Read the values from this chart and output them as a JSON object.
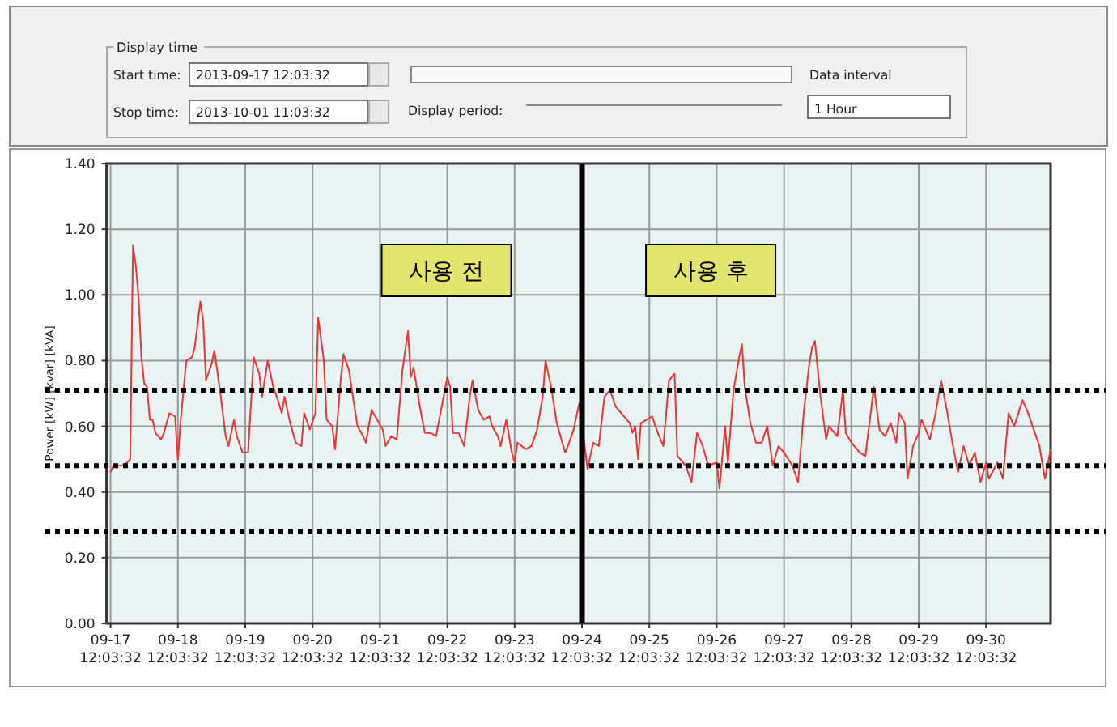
{
  "chart_data": {
    "type": "line",
    "ylabel": "Power [kW] [kvar] [kVA]",
    "xlim": [
      "2013-09-17T10:37",
      "2013-10-01T11:03"
    ],
    "ylim": [
      0,
      1.4
    ],
    "xticks": [
      {
        "value": "2013-09-17T12:03",
        "label": "09-17 12:03:32"
      },
      {
        "value": "2013-09-18T12:03",
        "label": "09-18 12:03:32"
      },
      {
        "value": "2013-09-19T12:03",
        "label": "09-19 12:03:32"
      },
      {
        "value": "2013-09-20T12:03",
        "label": "09-20 12:03:32"
      },
      {
        "value": "2013-09-21T12:03",
        "label": "09-21 12:03:32"
      },
      {
        "value": "2013-09-22T12:03",
        "label": "09-22 12:03:32"
      },
      {
        "value": "2013-09-23T12:03",
        "label": "09-23 12:03:32"
      },
      {
        "value": "2013-09-24T12:03",
        "label": "09-24 12:03:32"
      },
      {
        "value": "2013-09-25T12:03",
        "label": "09-25 12:03:32"
      },
      {
        "value": "2013-09-26T12:03",
        "label": "09-26 12:03:32"
      },
      {
        "value": "2013-09-27T12:03",
        "label": "09-27 12:03:32"
      },
      {
        "value": "2013-09-28T12:03",
        "label": "09-28 12:03:32"
      },
      {
        "value": "2013-09-29T12:03",
        "label": "09-29 12:03:32"
      },
      {
        "value": "2013-09-30T12:03",
        "label": "09-30 12:03:32"
      }
    ],
    "yticks": [
      {
        "value": 0,
        "label": "0.00"
      },
      {
        "value": 0.2,
        "label": "0.20"
      },
      {
        "value": 0.4,
        "label": "0.40"
      },
      {
        "value": 0.6,
        "label": "0.60"
      },
      {
        "value": 0.8,
        "label": "0.80"
      },
      {
        "value": 1.0,
        "label": "1.00"
      },
      {
        "value": 1.2,
        "label": "1.20"
      },
      {
        "value": 1.4,
        "label": "1.40"
      }
    ],
    "grid": true,
    "marker": "none",
    "line_style": "solid",
    "series": [
      {
        "color": "#ee3333",
        "x": [
          "2013-09-17T12:03",
          "2013-09-17T13:03",
          "2013-09-17T16:03",
          "2013-09-17T18:03",
          "2013-09-17T19:03",
          "2013-09-17T20:03",
          "2013-09-17T21:03",
          "2013-09-17T22:03",
          "2013-09-17T23:03",
          "2013-09-18T00:03",
          "2013-09-18T01:03",
          "2013-09-18T02:03",
          "2013-09-18T03:03",
          "2013-09-18T04:03",
          "2013-09-18T06:03",
          "2013-09-18T07:03",
          "2013-09-18T09:03",
          "2013-09-18T11:03",
          "2013-09-18T12:03",
          "2013-09-18T13:03",
          "2013-09-18T15:03",
          "2013-09-18T17:03",
          "2013-09-18T18:03",
          "2013-09-18T20:03",
          "2013-09-18T21:03",
          "2013-09-18T22:03",
          "2013-09-19T00:03",
          "2013-09-19T01:03",
          "2013-09-19T03:03",
          "2013-09-19T05:03",
          "2013-09-19T06:03",
          "2013-09-19T08:03",
          "2013-09-19T09:03",
          "2013-09-19T11:03",
          "2013-09-19T13:03",
          "2013-09-19T15:03",
          "2013-09-19T17:03",
          "2013-09-19T18:03",
          "2013-09-19T20:03",
          "2013-09-19T22:03",
          "2013-09-20T00:03",
          "2013-09-20T01:03",
          "2013-09-20T02:03",
          "2013-09-20T04:03",
          "2013-09-20T06:03",
          "2013-09-20T08:03",
          "2013-09-20T09:03",
          "2013-09-20T11:03",
          "2013-09-20T13:03",
          "2013-09-20T14:03",
          "2013-09-20T16:03",
          "2013-09-20T17:03",
          "2013-09-20T19:03",
          "2013-09-20T20:03",
          "2013-09-20T22:03",
          "2013-09-20T23:03",
          "2013-09-21T01:03",
          "2013-09-21T02:03",
          "2013-09-21T04:03",
          "2013-09-21T06:03",
          "2013-09-21T07:03",
          "2013-09-21T09:03",
          "2013-09-21T11:03",
          "2013-09-21T13:03",
          "2013-09-21T14:03",
          "2013-09-21T16:03",
          "2013-09-21T18:03",
          "2013-09-21T20:03",
          "2013-09-21T22:03",
          "2013-09-21T23:03",
          "2013-09-22T00:03",
          "2013-09-22T02:03",
          "2013-09-22T04:03",
          "2013-09-22T06:03",
          "2013-09-22T08:03",
          "2013-09-22T10:03",
          "2013-09-22T12:03",
          "2013-09-22T13:03",
          "2013-09-22T14:03",
          "2013-09-22T16:03",
          "2013-09-22T18:03",
          "2013-09-22T20:03",
          "2013-09-22T21:03",
          "2013-09-22T23:03",
          "2013-09-23T01:03",
          "2013-09-23T03:03",
          "2013-09-23T04:03",
          "2013-09-23T06:03",
          "2013-09-23T07:03",
          "2013-09-23T09:03",
          "2013-09-23T11:03",
          "2013-09-23T12:03",
          "2013-09-23T13:03",
          "2013-09-23T16:03",
          "2013-09-23T18:03",
          "2013-09-23T20:03",
          "2013-09-23T22:03",
          "2013-09-23T23:03",
          "2013-09-24T01:03",
          "2013-09-24T03:03",
          "2013-09-24T06:03",
          "2013-09-24T07:03",
          "2013-09-24T09:03",
          "2013-09-24T11:03",
          "2013-09-24T14:03",
          "2013-09-24T16:03",
          "2013-09-24T18:03",
          "2013-09-24T20:03",
          "2013-09-24T22:03",
          "2013-09-25T00:03",
          "2013-09-25T02:03",
          "2013-09-25T05:03",
          "2013-09-25T06:03",
          "2013-09-25T07:03",
          "2013-09-25T08:03",
          "2013-09-25T09:03",
          "2013-09-25T11:03",
          "2013-09-25T13:03",
          "2013-09-25T15:03",
          "2013-09-25T17:03",
          "2013-09-25T19:03",
          "2013-09-25T21:03",
          "2013-09-25T22:03",
          "2013-09-26T01:03",
          "2013-09-26T03:03",
          "2013-09-26T05:03",
          "2013-09-26T07:03",
          "2013-09-26T09:03",
          "2013-09-26T12:03",
          "2013-09-26T13:03",
          "2013-09-26T15:03",
          "2013-09-26T16:03",
          "2013-09-26T18:03",
          "2013-09-26T20:03",
          "2013-09-26T21:03",
          "2013-09-26T22:03",
          "2013-09-27T00:03",
          "2013-09-27T02:03",
          "2013-09-27T04:03",
          "2013-09-27T06:03",
          "2013-09-27T08:03",
          "2013-09-27T10:03",
          "2013-09-27T12:03",
          "2013-09-27T15:03",
          "2013-09-27T17:03",
          "2013-09-27T19:03",
          "2013-09-27T21:03",
          "2013-09-27T22:03",
          "2013-09-27T23:03",
          "2013-09-28T01:03",
          "2013-09-28T03:03",
          "2013-09-28T04:03",
          "2013-09-28T07:03",
          "2013-09-28T09:03",
          "2013-09-28T10:03",
          "2013-09-28T12:03",
          "2013-09-28T15:03",
          "2013-09-28T17:03",
          "2013-09-28T20:03",
          "2013-09-28T22:03",
          "2013-09-29T00:03",
          "2013-09-29T02:03",
          "2013-09-29T04:03",
          "2013-09-29T05:03",
          "2013-09-29T07:03",
          "2013-09-29T08:03",
          "2013-09-29T10:03",
          "2013-09-29T12:03",
          "2013-09-29T13:03",
          "2013-09-29T16:03",
          "2013-09-29T18:03",
          "2013-09-29T20:03",
          "2013-09-29T22:03",
          "2013-09-30T00:03",
          "2013-09-30T02:03",
          "2013-09-30T04:03",
          "2013-09-30T06:03",
          "2013-09-30T08:03",
          "2013-09-30T10:03",
          "2013-09-30T12:03",
          "2013-09-30T13:03",
          "2013-09-30T16:03",
          "2013-09-30T18:03",
          "2013-09-30T20:03",
          "2013-09-30T22:03",
          "2013-10-01T01:03",
          "2013-10-01T03:03",
          "2013-10-01T05:03",
          "2013-10-01T07:03",
          "2013-10-01T09:03",
          "2013-10-01T11:03"
        ],
        "values": [
          0.46,
          0.48,
          0.48,
          0.49,
          0.5,
          1.15,
          1.09,
          0.99,
          0.81,
          0.73,
          0.72,
          0.62,
          0.62,
          0.58,
          0.56,
          0.58,
          0.64,
          0.63,
          0.5,
          0.62,
          0.8,
          0.81,
          0.84,
          0.98,
          0.92,
          0.74,
          0.79,
          0.83,
          0.71,
          0.57,
          0.54,
          0.62,
          0.57,
          0.52,
          0.52,
          0.81,
          0.76,
          0.69,
          0.8,
          0.72,
          0.67,
          0.64,
          0.69,
          0.61,
          0.55,
          0.54,
          0.64,
          0.59,
          0.64,
          0.93,
          0.8,
          0.62,
          0.6,
          0.53,
          0.74,
          0.82,
          0.77,
          0.71,
          0.6,
          0.57,
          0.55,
          0.65,
          0.62,
          0.59,
          0.54,
          0.57,
          0.56,
          0.77,
          0.89,
          0.75,
          0.78,
          0.67,
          0.58,
          0.58,
          0.57,
          0.66,
          0.75,
          0.72,
          0.58,
          0.58,
          0.54,
          0.69,
          0.74,
          0.65,
          0.62,
          0.63,
          0.6,
          0.57,
          0.54,
          0.62,
          0.52,
          0.49,
          0.55,
          0.53,
          0.54,
          0.59,
          0.69,
          0.8,
          0.72,
          0.61,
          0.52,
          0.54,
          0.59,
          0.67,
          0.47,
          0.55,
          0.54,
          0.69,
          0.71,
          0.66,
          0.64,
          0.61,
          0.58,
          0.6,
          0.5,
          0.61,
          0.62,
          0.63,
          0.58,
          0.54,
          0.74,
          0.76,
          0.51,
          0.48,
          0.43,
          0.58,
          0.54,
          0.48,
          0.49,
          0.41,
          0.6,
          0.49,
          0.71,
          0.81,
          0.85,
          0.72,
          0.61,
          0.55,
          0.55,
          0.6,
          0.48,
          0.54,
          0.52,
          0.48,
          0.43,
          0.64,
          0.79,
          0.84,
          0.86,
          0.69,
          0.56,
          0.6,
          0.57,
          0.71,
          0.58,
          0.55,
          0.52,
          0.51,
          0.72,
          0.59,
          0.57,
          0.61,
          0.55,
          0.64,
          0.61,
          0.44,
          0.54,
          0.58,
          0.62,
          0.56,
          0.64,
          0.74,
          0.65,
          0.55,
          0.46,
          0.54,
          0.48,
          0.52,
          0.43,
          0.49,
          0.44,
          0.49,
          0.44,
          0.64,
          0.6,
          0.68,
          0.64,
          0.59,
          0.54,
          0.44,
          0.53
        ]
      }
    ],
    "ref_lines": [
      {
        "axis": "y",
        "value": 0.71,
        "color": "#000000",
        "line_style": "dotted"
      },
      {
        "axis": "y",
        "value": 0.48,
        "color": "#000000",
        "line_style": "dotted"
      },
      {
        "axis": "y",
        "value": 0.28,
        "color": "#000000",
        "line_style": "dotted"
      },
      {
        "axis": "x",
        "value": "2013-09-24T12:03",
        "color": "#000000",
        "line_style": "solid"
      }
    ],
    "annotations": [
      "사용 전",
      "사용 후",
      "Display time",
      "Start time:",
      "2013-09-17  12:03:32",
      "Stop time:",
      "2013-10-01  11:03:32",
      "Display period:",
      "Data interval",
      "1 Hour"
    ]
  }
}
